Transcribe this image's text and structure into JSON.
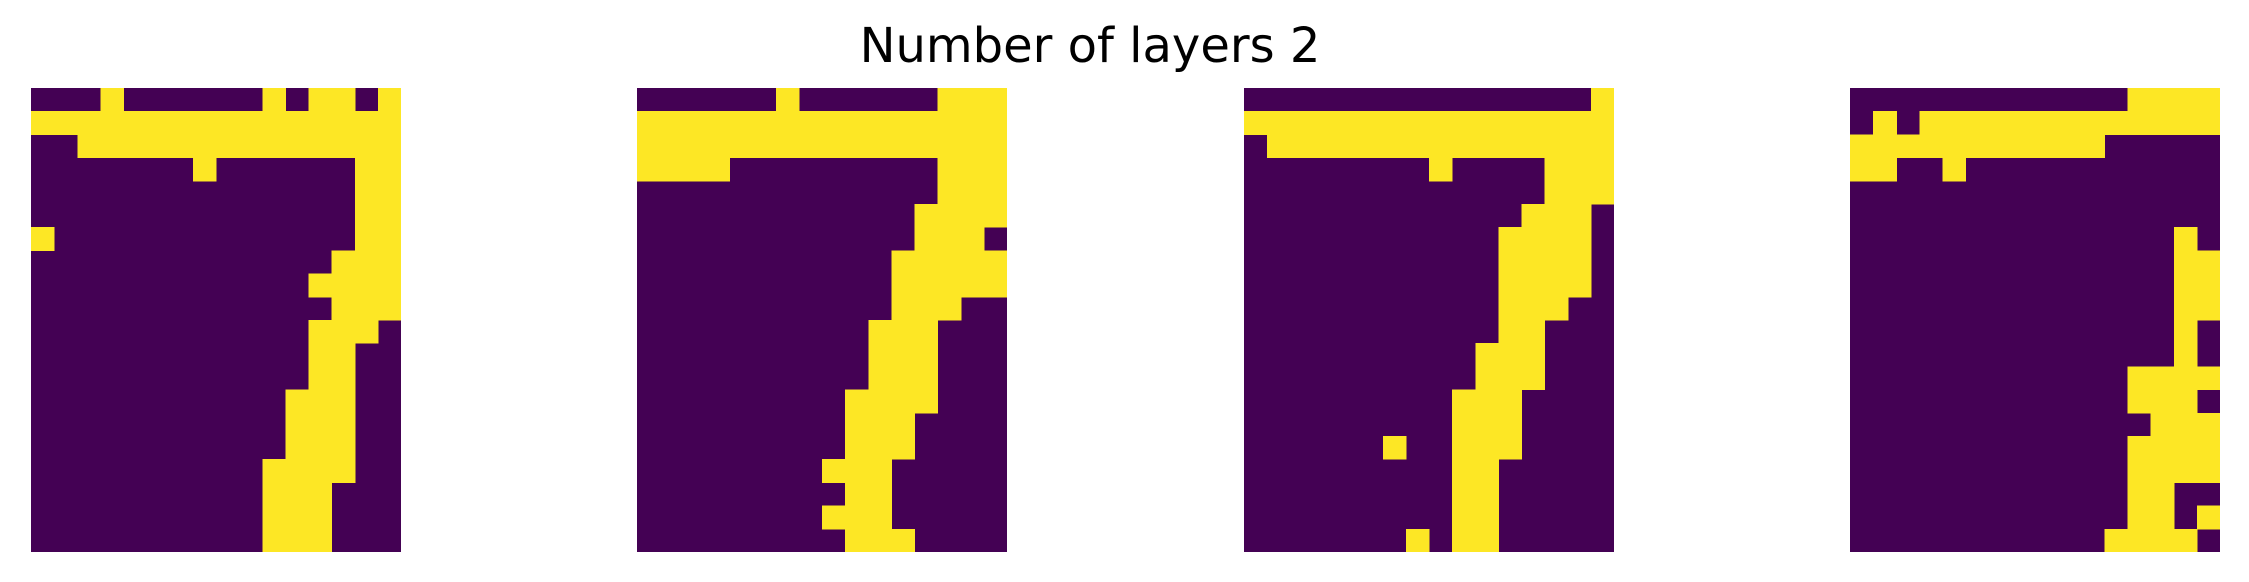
{
  "figure": {
    "title": "Number of layers 2"
  },
  "colors": {
    "off": "#440154",
    "on": "#fde725",
    "background": "#ffffff"
  },
  "chart_data": [
    {
      "type": "heatmap",
      "rows": 20,
      "cols": 16,
      "grid": false,
      "axes": "off",
      "values": [
        "0001000000101101",
        "1111111111111111",
        "0011111111111111",
        "0000000100000011",
        "0000000000000011",
        "0000000000000011",
        "1000000000000011",
        "0000000000000111",
        "0000000000001111",
        "0000000000000111",
        "0000000000001110",
        "0000000000001100",
        "0000000000001100",
        "0000000000011100",
        "0000000000011100",
        "0000000000011100",
        "0000000000111100",
        "0000000000111000",
        "0000000000111000",
        "0000000000111000"
      ]
    },
    {
      "type": "heatmap",
      "rows": 20,
      "cols": 16,
      "grid": false,
      "axes": "off",
      "values": [
        "0000001000000111",
        "1111111111111111",
        "1111111111111111",
        "1111000000000111",
        "0000000000000111",
        "0000000000001111",
        "0000000000001110",
        "0000000000011111",
        "0000000000011111",
        "0000000000011100",
        "0000000000111000",
        "0000000000111000",
        "0000000000111000",
        "0000000001111000",
        "0000000001110000",
        "0000000001110000",
        "0000000011100000",
        "0000000001100000",
        "0000000011100000",
        "0000000001110000"
      ]
    },
    {
      "type": "heatmap",
      "rows": 20,
      "cols": 16,
      "grid": false,
      "axes": "off",
      "values": [
        "0000000000000001",
        "1111111111111111",
        "0111111111111111",
        "0000000010000111",
        "0000000000000111",
        "0000000000001110",
        "0000000000011110",
        "0000000000011110",
        "0000000000011110",
        "0000000000011100",
        "0000000000011000",
        "0000000000111000",
        "0000000000111000",
        "0000000001110000",
        "0000000001110000",
        "0000001001110000",
        "0000000001100000",
        "0000000001100000",
        "0000000001100000",
        "0000000101100000"
      ]
    },
    {
      "type": "heatmap",
      "rows": 20,
      "cols": 16,
      "grid": false,
      "axes": "off",
      "values": [
        "0000000000001111",
        "0101111111111111",
        "1111111111100000",
        "1100100000000000",
        "0000000000000000",
        "0000000000000000",
        "0000000000000010",
        "0000000000000011",
        "0000000000000011",
        "0000000000000011",
        "0000000000000010",
        "0000000000000010",
        "0000000000001111",
        "0000000000001110",
        "0000000000000111",
        "0000000000001111",
        "0000000000001111",
        "0000000000001100",
        "0000000000001101",
        "0000000000011110"
      ]
    }
  ]
}
